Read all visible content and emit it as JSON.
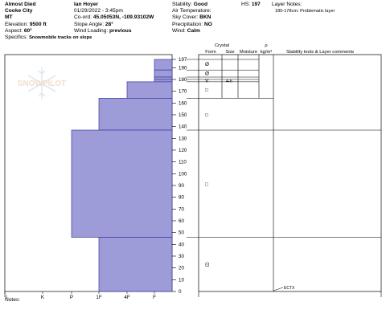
{
  "header": {
    "col1": [
      "Almost Died",
      "Cooke City",
      "MT"
    ],
    "elevation_label": "Elevation:",
    "elevation": "9500 ft",
    "aspect_label": "Aspect:",
    "aspect": "60°",
    "specifics_label": "Specifics:",
    "specifics": "Snowmobile tracks on slope",
    "observer": "Ian Hoyer",
    "datetime": "01/29/2022 - 3:45pm",
    "coord_label": "Co-ord:",
    "coord": "45.05053N, -109.93102W",
    "slope_label": "Slope Angle:",
    "slope": "28°",
    "wind_loading_label": "Wind Loading:",
    "wind_loading": "previous",
    "stability_label": "Stability:",
    "stability": "Good",
    "air_temp_label": "Air Temperature:",
    "sky_label": "Sky Cover:",
    "sky": "BKN",
    "precip_label": "Precipitation:",
    "precip": "NO",
    "wind_label": "Wind:",
    "wind": "Calm",
    "hs_label": "HS:",
    "hs": "197",
    "layer_notes_label": "Layer Notes:",
    "layer_note": "180-178cm: Problematic layer"
  },
  "watermark": "SNOWPILOT",
  "table_headers": {
    "crystal": "Crystal",
    "form": "Form",
    "size": "Size",
    "moisture": "Moisture",
    "rho": "ρ",
    "kgm3": "kg/m³",
    "stability_tests": "Stability tests & Layer comments"
  },
  "hardness_axis": [
    "I",
    "K",
    "P",
    "1F",
    "4F",
    "F"
  ],
  "depth_ticks": [
    197,
    190,
    180,
    170,
    160,
    150,
    140,
    130,
    120,
    110,
    100,
    90,
    80,
    70,
    60,
    50,
    40,
    30,
    20,
    10,
    0
  ],
  "chart_data": {
    "type": "bar",
    "hs": 197,
    "hardness_scale": [
      "F",
      "4F",
      "1F",
      "P",
      "K",
      "I"
    ],
    "layers": [
      {
        "top": 197,
        "bottom": 188,
        "hardness": "F"
      },
      {
        "top": 188,
        "bottom": 182,
        "hardness": "F"
      },
      {
        "top": 182,
        "bottom": 180,
        "hardness": "F"
      },
      {
        "top": 180,
        "bottom": 178,
        "hardness": "F"
      },
      {
        "top": 178,
        "bottom": 164,
        "hardness": "4F"
      },
      {
        "top": 164,
        "bottom": 137,
        "hardness": "1F"
      },
      {
        "top": 137,
        "bottom": 46,
        "hardness": "P"
      },
      {
        "top": 46,
        "bottom": 0,
        "hardness": "1F"
      }
    ],
    "crystals": [
      {
        "depth": 193,
        "form": "Ø"
      },
      {
        "depth": 185,
        "form": "Ø"
      },
      {
        "depth": 179,
        "form": "V",
        "size": "4-6"
      },
      {
        "depth": 171,
        "form": "□"
      },
      {
        "depth": 150,
        "form": "□"
      },
      {
        "depth": 91,
        "form": "□"
      },
      {
        "depth": 23,
        "form": "⊡"
      }
    ],
    "comments": [
      {
        "depth": 0,
        "text": "ECTX"
      }
    ]
  },
  "notes_label": "Notes:",
  "colors": {
    "layer_fill": "#9d9bd8",
    "layer_stroke": "#3f3aa0"
  }
}
